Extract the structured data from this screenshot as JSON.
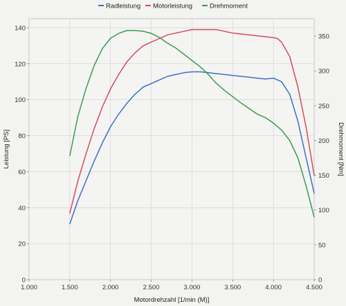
{
  "chart_data": {
    "type": "line",
    "title": "",
    "xlabel": "Motordrehzahl [1/min (M)]",
    "ylabel": "Leistung [PS]",
    "ylabel_right": "Drehmoment [Nm]",
    "xlim": [
      1000,
      4500
    ],
    "ylim": [
      0,
      145
    ],
    "ylim_right": [
      0,
      375
    ],
    "x_ticks": [
      1000,
      1500,
      2000,
      2500,
      3000,
      3500,
      4000,
      4500
    ],
    "x_tick_labels": [
      "1.000",
      "1.500",
      "2.000",
      "2.500",
      "3.000",
      "3.500",
      "4.000",
      "4.500"
    ],
    "y_ticks": [
      0,
      20,
      40,
      60,
      80,
      100,
      120,
      140
    ],
    "y_tick_labels": [
      "0",
      "20",
      "40",
      "60",
      "80",
      "100",
      "120",
      "140"
    ],
    "y_ticks_right": [
      0,
      50,
      100,
      150,
      200,
      250,
      300,
      350
    ],
    "y_tick_labels_right": [
      "0",
      "50",
      "100",
      "150",
      "200",
      "250",
      "300",
      "350"
    ],
    "grid": true,
    "legend_position": "top",
    "series": [
      {
        "name": "Radleistung",
        "color": "#3b6fc4",
        "axis": "left",
        "x": [
          1500,
          1600,
          1700,
          1800,
          1900,
          2000,
          2100,
          2200,
          2300,
          2400,
          2500,
          2600,
          2700,
          2800,
          2900,
          3000,
          3100,
          3200,
          3300,
          3400,
          3500,
          3600,
          3700,
          3800,
          3900,
          4000,
          4050,
          4100,
          4200,
          4300,
          4400,
          4500
        ],
        "values": [
          31,
          44,
          55,
          66,
          76,
          85,
          92,
          98,
          103,
          107,
          109,
          111,
          113,
          114,
          115,
          115.5,
          115.5,
          115,
          114.5,
          114,
          113.5,
          113,
          112.5,
          112,
          111.5,
          112,
          111,
          110,
          103,
          88,
          68,
          48
        ]
      },
      {
        "name": "Motorleistung",
        "color": "#d64a5c",
        "axis": "left",
        "x": [
          1500,
          1600,
          1700,
          1800,
          1900,
          2000,
          2100,
          2200,
          2300,
          2400,
          2500,
          2600,
          2700,
          2800,
          2900,
          3000,
          3100,
          3200,
          3300,
          3400,
          3500,
          3600,
          3700,
          3800,
          3900,
          4000,
          4050,
          4100,
          4200,
          4300,
          4400,
          4500
        ],
        "values": [
          37,
          55,
          70,
          84,
          96,
          106,
          114,
          121,
          126,
          130,
          132,
          134,
          136,
          137,
          138,
          139,
          139,
          139,
          139,
          138,
          137,
          136.5,
          136,
          135.5,
          135,
          134.5,
          134,
          132,
          124,
          107,
          85,
          58
        ]
      },
      {
        "name": "Drehmoment",
        "color": "#3c9a4e",
        "axis": "right",
        "x": [
          1500,
          1600,
          1700,
          1800,
          1900,
          2000,
          2100,
          2200,
          2300,
          2400,
          2500,
          2600,
          2700,
          2800,
          2900,
          3000,
          3100,
          3200,
          3300,
          3400,
          3500,
          3600,
          3700,
          3800,
          3900,
          4000,
          4100,
          4200,
          4300,
          4400,
          4500
        ],
        "values": [
          178,
          235,
          275,
          308,
          332,
          347,
          354,
          358,
          358,
          357,
          354,
          348,
          340,
          333,
          324,
          315,
          306,
          295,
          282,
          272,
          263,
          254,
          246,
          238,
          233,
          225,
          215,
          200,
          175,
          135,
          90
        ]
      }
    ]
  }
}
